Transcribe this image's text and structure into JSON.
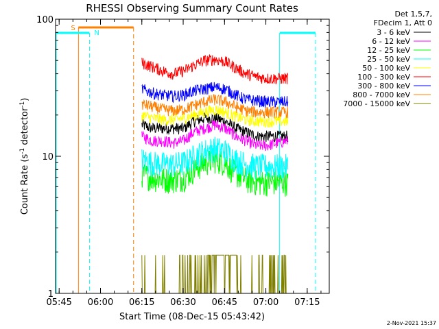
{
  "chart_data": {
    "type": "line",
    "title": "RHESSI Observing Summary Count Rates",
    "xlabel": "Start Time (08-Dec-15 05:43:42)",
    "ylabel": "Count Rate (s",
    "ylabel_sup1": "-1",
    "ylabel_mid": " detector",
    "ylabel_sup2": "-1",
    "ylabel_end": ")",
    "y_scale": "log",
    "ylim": [
      1,
      100
    ],
    "xlim_minutes": [
      "05:43:42",
      "07:23:00"
    ],
    "x_ticks": [
      "05:45",
      "06:00",
      "06:15",
      "06:30",
      "06:45",
      "07:00",
      "07:15"
    ],
    "y_ticks": [
      "1",
      "10",
      "100"
    ],
    "legend": {
      "header1": "Det 1,5,7,",
      "header2": "FDecim 1, Att 0",
      "placement": "top-right"
    },
    "series": [
      {
        "name": "3 - 6 keV",
        "color": "#000000",
        "start": "06:15",
        "end": "07:08",
        "values": [
          17,
          16,
          16,
          16,
          16,
          18,
          19,
          19,
          18,
          16,
          15,
          14,
          14,
          14,
          14
        ]
      },
      {
        "name": "6 - 12 keV",
        "color": "#ff00ff",
        "start": "06:15",
        "end": "07:08",
        "values": [
          14,
          13,
          13,
          12.5,
          13,
          15,
          16,
          17,
          16,
          14,
          13,
          12,
          12,
          12.5,
          13
        ]
      },
      {
        "name": "12 - 25 keV",
        "color": "#00ff00",
        "start": "06:15",
        "end": "07:08",
        "values": [
          7.5,
          7,
          6.8,
          6.8,
          7,
          8,
          9,
          9.5,
          9,
          7.5,
          6.8,
          6.5,
          6.5,
          6.5,
          6.5
        ]
      },
      {
        "name": "25 - 50 keV",
        "color": "#00ffff",
        "start": "06:15",
        "end": "07:08",
        "values": [
          9.5,
          9,
          8.8,
          8.8,
          9,
          10,
          11,
          11.5,
          11,
          9.5,
          8.8,
          8.5,
          8.5,
          8.5,
          8.5
        ]
      },
      {
        "name": "50 - 100 keV",
        "color": "#ffff00",
        "start": "06:15",
        "end": "07:08",
        "values": [
          20,
          19,
          18.5,
          18.5,
          19,
          20,
          21,
          22,
          21,
          19.5,
          18.5,
          18,
          18,
          18,
          18
        ]
      },
      {
        "name": "100 - 300 keV",
        "color": "#ff0000",
        "start": "06:15",
        "end": "07:08",
        "values": [
          48,
          45,
          42,
          40,
          42,
          46,
          50,
          51,
          49,
          44,
          40,
          38,
          37,
          37,
          37
        ]
      },
      {
        "name": "300 - 800 keV",
        "color": "#0000ff",
        "start": "06:15",
        "end": "07:08",
        "values": [
          31,
          29,
          28,
          27.5,
          28,
          30,
          31,
          32,
          31,
          28,
          26,
          25.5,
          25,
          25,
          25
        ]
      },
      {
        "name": "800 - 7000 keV",
        "color": "#ff8000",
        "start": "06:15",
        "end": "07:08",
        "values": [
          24,
          23,
          22,
          21.5,
          22,
          23.5,
          25,
          26,
          25,
          23,
          21.5,
          21,
          21,
          21,
          21
        ]
      },
      {
        "name": "7000 - 15000 keV",
        "color": "#808000",
        "start": "06:15",
        "end": "07:08",
        "values": [
          1.8,
          1,
          1,
          1,
          1.9,
          1,
          1.9,
          1.9,
          1.9,
          1.7,
          1,
          1,
          1,
          1.5,
          1
        ]
      }
    ],
    "annotations": {
      "saa_label": "S",
      "night_label": "N",
      "saa_start": "05:52",
      "saa_end": "06:12",
      "night_start": "05:43:42",
      "night_end": "05:56",
      "night2_start": "07:05",
      "night2_end": "07:18",
      "saa_color": "#ff8000",
      "night_color": "#00ffff"
    },
    "timestamp": "2-Nov-2021 15:37"
  }
}
